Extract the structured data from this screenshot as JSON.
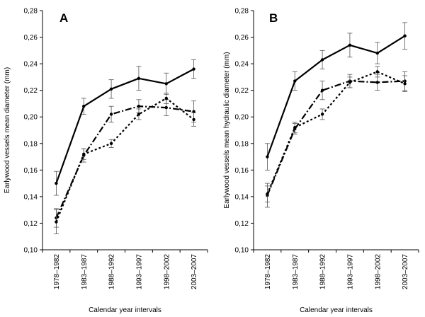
{
  "chart_data": [
    {
      "type": "line",
      "panel_label": "A",
      "ylabel": "Earlywood vessels mean diameter (mm)",
      "xlabel": "Calendar year intervals",
      "categories": [
        "1978–1982",
        "1983–1987",
        "1988–1992",
        "1993–1997",
        "1998–2002",
        "2003–2007"
      ],
      "ylim": [
        0.1,
        0.28
      ],
      "yticks": [
        0.1,
        0.12,
        0.14,
        0.16,
        0.18,
        0.2,
        0.22,
        0.24,
        0.26,
        0.28
      ],
      "ytick_labels": [
        "0,10",
        "0,12",
        "0,14",
        "0,16",
        "0,18",
        "0,20",
        "0,22",
        "0,24",
        "0,26",
        "0,28"
      ],
      "grid": false,
      "series": [
        {
          "name": "solid",
          "style": "solid",
          "values": [
            0.15,
            0.208,
            0.221,
            0.229,
            0.225,
            0.236
          ],
          "errors": [
            0.009,
            0.006,
            0.007,
            0.009,
            0.008,
            0.007
          ]
        },
        {
          "name": "dash-dot",
          "style": "dashdot",
          "values": [
            0.124,
            0.171,
            0.202,
            0.208,
            0.207,
            0.204
          ],
          "errors": [
            0.007,
            0.005,
            0.006,
            0.005,
            0.006,
            0.008
          ]
        },
        {
          "name": "dotted",
          "style": "dotted",
          "values": [
            0.121,
            0.172,
            0.18,
            0.202,
            0.214,
            0.198
          ],
          "errors": [
            0.009,
            0.004,
            0.003,
            0.004,
            0.004,
            0.005
          ]
        }
      ]
    },
    {
      "type": "line",
      "panel_label": "B",
      "ylabel": "Earlywood vessels mean hydraulic diameter (mm)",
      "xlabel": "Calendar year intervals",
      "categories": [
        "1978–1982",
        "1983–1987",
        "1988–1992",
        "1993–1997",
        "1998–2002",
        "2003–2007"
      ],
      "ylim": [
        0.1,
        0.28
      ],
      "yticks": [
        0.1,
        0.12,
        0.14,
        0.16,
        0.18,
        0.2,
        0.22,
        0.24,
        0.26,
        0.28
      ],
      "ytick_labels": [
        "0,10",
        "0,12",
        "0,14",
        "0,16",
        "0,18",
        "0,20",
        "0,22",
        "0,24",
        "0,26",
        "0,28"
      ],
      "grid": false,
      "series": [
        {
          "name": "solid",
          "style": "solid",
          "values": [
            0.17,
            0.227,
            0.243,
            0.254,
            0.248,
            0.261
          ],
          "errors": [
            0.01,
            0.007,
            0.007,
            0.009,
            0.008,
            0.01
          ]
        },
        {
          "name": "dash-dot",
          "style": "dashdot",
          "values": [
            0.141,
            0.191,
            0.22,
            0.227,
            0.226,
            0.227
          ],
          "errors": [
            0.009,
            0.004,
            0.007,
            0.005,
            0.006,
            0.007
          ]
        },
        {
          "name": "dotted",
          "style": "dotted",
          "values": [
            0.142,
            0.192,
            0.202,
            0.226,
            0.234,
            0.225
          ],
          "errors": [
            0.006,
            0.004,
            0.004,
            0.004,
            0.004,
            0.006
          ]
        }
      ]
    }
  ]
}
